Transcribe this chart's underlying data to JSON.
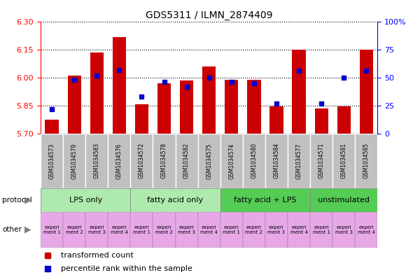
{
  "title": "GDS5311 / ILMN_2874409",
  "samples": [
    "GSM1034573",
    "GSM1034579",
    "GSM1034583",
    "GSM1034576",
    "GSM1034572",
    "GSM1034578",
    "GSM1034582",
    "GSM1034575",
    "GSM1034574",
    "GSM1034580",
    "GSM1034584",
    "GSM1034577",
    "GSM1034571",
    "GSM1034581",
    "GSM1034585"
  ],
  "red_values": [
    5.775,
    6.01,
    6.135,
    6.22,
    5.855,
    5.97,
    5.985,
    6.06,
    5.99,
    5.99,
    5.845,
    6.15,
    5.835,
    5.845,
    6.15
  ],
  "blue_values": [
    22,
    48,
    52,
    57,
    33,
    46,
    42,
    50,
    46,
    45,
    27,
    56,
    27,
    50,
    56
  ],
  "ylim_left": [
    5.7,
    6.3
  ],
  "ylim_right": [
    0,
    100
  ],
  "yticks_left": [
    5.7,
    5.85,
    6.0,
    6.15,
    6.3
  ],
  "yticks_right": [
    0,
    25,
    50,
    75,
    100
  ],
  "groups": [
    {
      "label": "LPS only",
      "start": 0,
      "end": 4,
      "color": "#aeeaae"
    },
    {
      "label": "fatty acid only",
      "start": 4,
      "end": 8,
      "color": "#aeeaae"
    },
    {
      "label": "fatty acid + LPS",
      "start": 8,
      "end": 12,
      "color": "#55cc55"
    },
    {
      "label": "unstimulated",
      "start": 12,
      "end": 15,
      "color": "#55cc55"
    }
  ],
  "experiment_labels": [
    "experi\nment 1",
    "experi\nment 2",
    "experi\nment 3",
    "experi\nment 4",
    "experi\nment 1",
    "experi\nment 2",
    "experi\nment 3",
    "experi\nment 4",
    "experi\nment 1",
    "experi\nment 2",
    "experi\nment 3",
    "experi\nment 4",
    "experi\nment 1",
    "experi\nment 3",
    "experi\nment 4"
  ],
  "exp_colors": [
    "#e8a8e8",
    "#e8a8e8",
    "#e8a8e8",
    "#e8a8e8",
    "#e8a8e8",
    "#e8a8e8",
    "#e8a8e8",
    "#e8a8e8",
    "#e8a8e8",
    "#e8a8e8",
    "#e8a8e8",
    "#e8a8e8",
    "#e8a8e8",
    "#e8a8e8",
    "#e8a8e8"
  ],
  "bar_color": "#cc0000",
  "dot_color": "#0000cc",
  "bar_width": 0.6,
  "base": 5.7,
  "sample_box_color": "#c0c0c0",
  "chart_bg": "#ffffff"
}
